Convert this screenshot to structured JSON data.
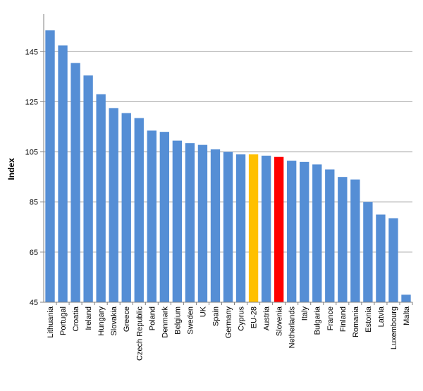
{
  "chart_data": {
    "type": "bar",
    "title": "",
    "xlabel": "",
    "ylabel": "Index",
    "ylim": [
      45,
      160
    ],
    "yticks": [
      45,
      65,
      85,
      105,
      125,
      145
    ],
    "grid": true,
    "legend": "none",
    "categories": [
      "Lithuania",
      "Portugal",
      "Croatia",
      "Ireland",
      "Hungary",
      "Slovakia",
      "Greece",
      "Czech Republic",
      "Poland",
      "Denmark",
      "Belgium",
      "Sweden",
      "UK",
      "Spain",
      "Germany",
      "Cyprus",
      "EU-28",
      "Austria",
      "Slovenia",
      "Netherlands",
      "Italy",
      "Bulgaria",
      "France",
      "Finland",
      "Romania",
      "Estonia",
      "Latvia",
      "Luxembourg",
      "Malta"
    ],
    "values": [
      153.5,
      147.5,
      140.5,
      135.5,
      128,
      122.5,
      120.5,
      118.5,
      113.5,
      113,
      109.5,
      108.5,
      107.8,
      106,
      105,
      104,
      104,
      103.5,
      103,
      101.5,
      101,
      100,
      98,
      95,
      94,
      85,
      80,
      78.5,
      48
    ],
    "colors": {
      "default": "#558ed5",
      "highlight_eu": "#ffc000",
      "highlight_slovenia": "#ff0000",
      "grid": "#a6a6a6",
      "axis": "#808080"
    },
    "highlights": {
      "EU-28": "#ffc000",
      "Slovenia": "#ff0000"
    }
  }
}
